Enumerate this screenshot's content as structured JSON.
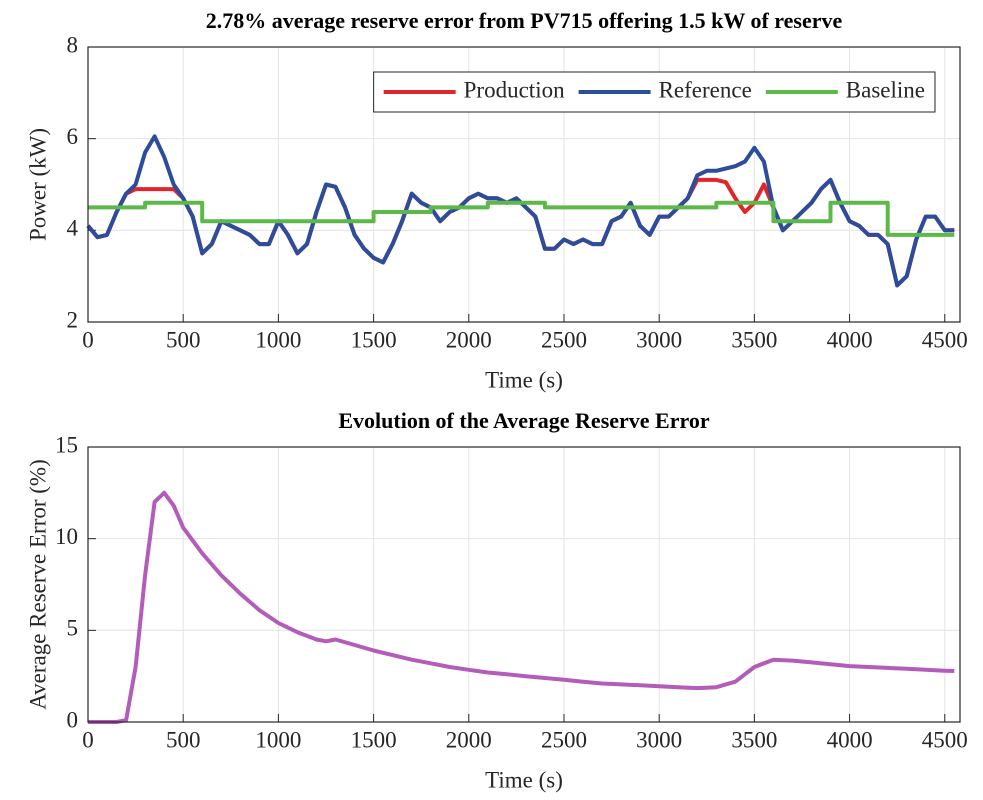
{
  "chart_data": [
    {
      "type": "line",
      "title": "2.78% average reserve error from PV715 offering 1.5 kW of reserve",
      "xlabel": "Time (s)",
      "ylabel": "Power (kW)",
      "xlim": [
        0,
        4580
      ],
      "ylim": [
        2,
        8
      ],
      "xticks": [
        0,
        500,
        1000,
        1500,
        2000,
        2500,
        3000,
        3500,
        4000,
        4500
      ],
      "yticks": [
        2,
        4,
        6,
        8
      ],
      "grid": true,
      "legend": "upper right",
      "x": [
        0,
        50,
        100,
        150,
        200,
        250,
        300,
        350,
        400,
        450,
        500,
        550,
        600,
        650,
        700,
        750,
        800,
        850,
        900,
        950,
        1000,
        1050,
        1100,
        1150,
        1200,
        1250,
        1300,
        1350,
        1400,
        1450,
        1500,
        1550,
        1600,
        1650,
        1700,
        1750,
        1800,
        1850,
        1900,
        1950,
        2000,
        2050,
        2100,
        2150,
        2200,
        2250,
        2300,
        2350,
        2400,
        2450,
        2500,
        2550,
        2600,
        2650,
        2700,
        2750,
        2800,
        2850,
        2900,
        2950,
        3000,
        3050,
        3100,
        3150,
        3200,
        3250,
        3300,
        3350,
        3400,
        3450,
        3500,
        3550,
        3600,
        3650,
        3700,
        3750,
        3800,
        3850,
        3900,
        3950,
        4000,
        4050,
        4100,
        4150,
        4200,
        4250,
        4300,
        4350,
        4400,
        4450,
        4500,
        4550
      ],
      "series": [
        {
          "name": "Production",
          "color": "#e0262b",
          "values": [
            4.1,
            3.85,
            3.9,
            4.4,
            4.8,
            4.9,
            4.9,
            4.9,
            4.9,
            4.9,
            4.7,
            4.3,
            3.5,
            3.7,
            4.2,
            4.1,
            4.0,
            3.9,
            3.7,
            3.7,
            4.2,
            3.9,
            3.5,
            3.7,
            4.4,
            5.0,
            4.95,
            4.5,
            3.9,
            3.6,
            3.4,
            3.3,
            3.7,
            4.2,
            4.8,
            4.6,
            4.5,
            4.2,
            4.4,
            4.5,
            4.7,
            4.8,
            4.7,
            4.7,
            4.6,
            4.7,
            4.5,
            4.3,
            3.6,
            3.6,
            3.8,
            3.7,
            3.8,
            3.7,
            3.7,
            4.2,
            4.3,
            4.6,
            4.1,
            3.9,
            4.3,
            4.3,
            4.5,
            4.7,
            5.1,
            5.1,
            5.1,
            5.05,
            4.7,
            4.4,
            4.6,
            5.0,
            4.5,
            4.0,
            4.2,
            4.4,
            4.6,
            4.9,
            5.1,
            4.6,
            4.2,
            4.1,
            3.9,
            3.9,
            3.7,
            2.8,
            3.0,
            3.8,
            4.3,
            4.3,
            4.0,
            4.0
          ]
        },
        {
          "name": "Reference",
          "color": "#2c4d9c",
          "values": [
            4.1,
            3.85,
            3.9,
            4.4,
            4.8,
            5.0,
            5.7,
            6.05,
            5.6,
            5.0,
            4.7,
            4.3,
            3.5,
            3.7,
            4.2,
            4.1,
            4.0,
            3.9,
            3.7,
            3.7,
            4.2,
            3.9,
            3.5,
            3.7,
            4.4,
            5.0,
            4.95,
            4.5,
            3.9,
            3.6,
            3.4,
            3.3,
            3.7,
            4.2,
            4.8,
            4.6,
            4.5,
            4.2,
            4.4,
            4.5,
            4.7,
            4.8,
            4.7,
            4.7,
            4.6,
            4.7,
            4.5,
            4.3,
            3.6,
            3.6,
            3.8,
            3.7,
            3.8,
            3.7,
            3.7,
            4.2,
            4.3,
            4.6,
            4.1,
            3.9,
            4.3,
            4.3,
            4.5,
            4.7,
            5.2,
            5.3,
            5.3,
            5.35,
            5.4,
            5.5,
            5.8,
            5.5,
            4.5,
            4.0,
            4.2,
            4.4,
            4.6,
            4.9,
            5.1,
            4.6,
            4.2,
            4.1,
            3.9,
            3.9,
            3.7,
            2.8,
            3.0,
            3.8,
            4.3,
            4.3,
            4.0,
            4.0
          ]
        },
        {
          "name": "Baseline",
          "color": "#5cb848",
          "x": [
            0,
            300,
            300,
            600,
            600,
            1500,
            1500,
            1800,
            1800,
            2100,
            2100,
            2400,
            2400,
            3300,
            3300,
            3600,
            3600,
            3900,
            3900,
            4200,
            4200,
            4550
          ],
          "values": [
            4.5,
            4.5,
            4.6,
            4.6,
            4.2,
            4.2,
            4.4,
            4.4,
            4.5,
            4.5,
            4.6,
            4.6,
            4.5,
            4.5,
            4.6,
            4.6,
            4.2,
            4.2,
            4.6,
            4.6,
            3.9,
            3.9
          ]
        }
      ]
    },
    {
      "type": "line",
      "title": "Evolution of the Average Reserve Error",
      "xlabel": "Time (s)",
      "ylabel": "Average Reserve Error (%)",
      "xlim": [
        0,
        4580
      ],
      "ylim": [
        0,
        15
      ],
      "xticks": [
        0,
        500,
        1000,
        1500,
        2000,
        2500,
        3000,
        3500,
        4000,
        4500
      ],
      "yticks": [
        0,
        5,
        10,
        15
      ],
      "grid": true,
      "x": [
        0,
        50,
        100,
        150,
        200,
        250,
        300,
        350,
        400,
        450,
        500,
        600,
        700,
        800,
        900,
        1000,
        1100,
        1200,
        1250,
        1300,
        1400,
        1500,
        1600,
        1700,
        1800,
        1900,
        2000,
        2100,
        2200,
        2300,
        2400,
        2500,
        2600,
        2700,
        2800,
        2900,
        3000,
        3100,
        3200,
        3300,
        3400,
        3500,
        3600,
        3700,
        3800,
        3900,
        4000,
        4100,
        4200,
        4300,
        4400,
        4500,
        4550
      ],
      "series": [
        {
          "color": "#b35cb9",
          "values": [
            0,
            0,
            0,
            0,
            0.1,
            3,
            8,
            12,
            12.5,
            11.8,
            10.6,
            9.2,
            8.0,
            7.0,
            6.1,
            5.4,
            4.9,
            4.5,
            4.4,
            4.5,
            4.2,
            3.9,
            3.65,
            3.4,
            3.2,
            3.0,
            2.85,
            2.7,
            2.6,
            2.5,
            2.4,
            2.3,
            2.2,
            2.1,
            2.05,
            2.0,
            1.95,
            1.9,
            1.85,
            1.9,
            2.2,
            3.0,
            3.4,
            3.35,
            3.25,
            3.15,
            3.05,
            3.0,
            2.95,
            2.9,
            2.85,
            2.8,
            2.78
          ]
        }
      ]
    }
  ]
}
